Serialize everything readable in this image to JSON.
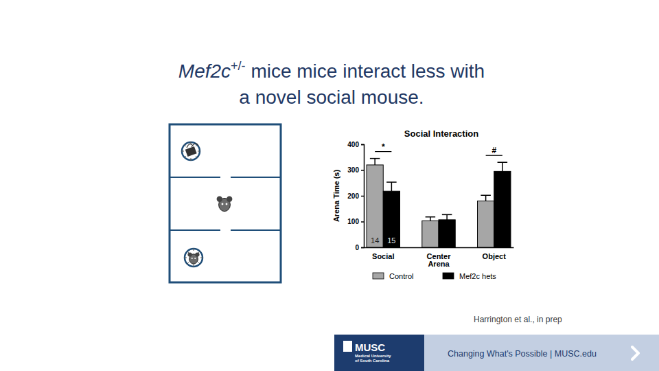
{
  "slide": {
    "title_gene": "Mef2c",
    "title_superscript": "+/-",
    "title_line1_rest": " mice mice interact less with",
    "title_line2": "a novel social mouse.",
    "citation": "Harrington et al., in prep"
  },
  "footer": {
    "logo": "MUSC",
    "logo_subtitle": [
      "Medical University",
      "of South Carolina"
    ],
    "tagline": "Changing What's Possible | MUSC.edu"
  },
  "chart_data": {
    "type": "bar",
    "title": "Social Interaction",
    "y_label": "Arena Time (s)",
    "categories": [
      "Social",
      "Center Arena",
      "Object"
    ],
    "series": [
      {
        "name": "Control",
        "color": "#a6a6a6",
        "values": [
          320,
          103,
          180
        ],
        "errors": [
          25,
          15,
          22
        ],
        "n": 14
      },
      {
        "name": "Mef2c hets",
        "color": "#000000",
        "values": [
          218,
          107,
          295
        ],
        "errors": [
          35,
          20,
          35
        ],
        "n": 15
      }
    ],
    "ylim": [
      0,
      400
    ],
    "yticks": [
      0,
      100,
      200,
      300,
      400
    ],
    "legend": "bottom",
    "annotations": [
      {
        "text": "*",
        "category": 0
      },
      {
        "text": "#",
        "category": 2
      }
    ]
  }
}
